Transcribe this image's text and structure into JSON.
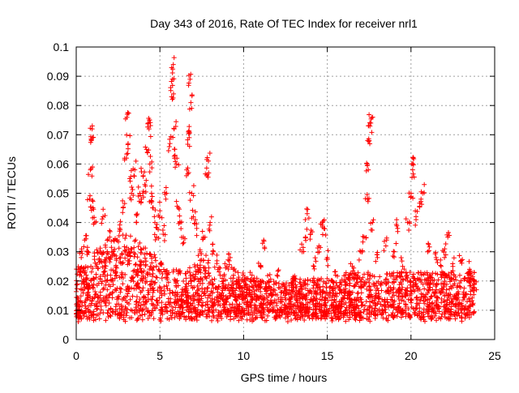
{
  "chart_data": {
    "type": "scatter",
    "title": "Day 343 of 2016, Rate Of TEC Index for receiver nrl1",
    "xlabel": "GPS time / hours",
    "ylabel": "ROTI / TECUs",
    "xlim": [
      0,
      25
    ],
    "ylim": [
      0,
      0.1
    ],
    "xticks": [
      0,
      5,
      10,
      15,
      20,
      25
    ],
    "xtick_labels": [
      "0",
      "5",
      "10",
      "15",
      "20",
      "25"
    ],
    "yticks": [
      0,
      0.01,
      0.02,
      0.03,
      0.04,
      0.05,
      0.06,
      0.07,
      0.08,
      0.09,
      0.1
    ],
    "ytick_labels": [
      "0",
      "0.01",
      "0.02",
      "0.03",
      "0.04",
      "0.05",
      "0.06",
      "0.07",
      "0.08",
      "0.09",
      "0.1"
    ],
    "grid": true,
    "marker": "+",
    "color": "#ff0000",
    "data_x_range_hours": [
      0,
      23.8
    ],
    "series": [
      {
        "name": "nrl1",
        "points": [
          [
            0.1,
            0.012
          ],
          [
            0.2,
            0.022
          ],
          [
            0.3,
            0.028
          ],
          [
            0.4,
            0.02
          ],
          [
            0.5,
            0.034
          ],
          [
            0.6,
            0.018
          ],
          [
            0.7,
            0.03
          ],
          [
            0.8,
            0.048
          ],
          [
            0.85,
            0.058
          ],
          [
            0.9,
            0.068
          ],
          [
            0.95,
            0.072
          ],
          [
            1.0,
            0.045
          ],
          [
            1.1,
            0.04
          ],
          [
            1.2,
            0.025
          ],
          [
            1.4,
            0.03
          ],
          [
            1.6,
            0.042
          ],
          [
            1.8,
            0.028
          ],
          [
            2.0,
            0.035
          ],
          [
            2.2,
            0.03
          ],
          [
            2.4,
            0.022
          ],
          [
            2.6,
            0.038
          ],
          [
            2.8,
            0.045
          ],
          [
            3.0,
            0.062
          ],
          [
            3.05,
            0.077
          ],
          [
            3.1,
            0.067
          ],
          [
            3.2,
            0.055
          ],
          [
            3.3,
            0.05
          ],
          [
            3.5,
            0.058
          ],
          [
            3.6,
            0.04
          ],
          [
            3.8,
            0.05
          ],
          [
            3.9,
            0.048
          ],
          [
            4.0,
            0.056
          ],
          [
            4.1,
            0.053
          ],
          [
            4.2,
            0.065
          ],
          [
            4.3,
            0.074
          ],
          [
            4.35,
            0.072
          ],
          [
            4.4,
            0.06
          ],
          [
            4.5,
            0.05
          ],
          [
            4.6,
            0.045
          ],
          [
            4.7,
            0.04
          ],
          [
            4.8,
            0.035
          ],
          [
            5.0,
            0.044
          ],
          [
            5.2,
            0.036
          ],
          [
            5.4,
            0.05
          ],
          [
            5.6,
            0.067
          ],
          [
            5.7,
            0.083
          ],
          [
            5.75,
            0.089
          ],
          [
            5.8,
            0.094
          ],
          [
            5.85,
            0.072
          ],
          [
            5.9,
            0.063
          ],
          [
            6.0,
            0.06
          ],
          [
            6.1,
            0.045
          ],
          [
            6.2,
            0.04
          ],
          [
            6.4,
            0.035
          ],
          [
            6.6,
            0.058
          ],
          [
            6.7,
            0.071
          ],
          [
            6.75,
            0.069
          ],
          [
            6.8,
            0.089
          ],
          [
            6.85,
            0.081
          ],
          [
            6.9,
            0.05
          ],
          [
            7.0,
            0.042
          ],
          [
            7.2,
            0.038
          ],
          [
            7.4,
            0.03
          ],
          [
            7.6,
            0.035
          ],
          [
            7.8,
            0.056
          ],
          [
            7.9,
            0.061
          ],
          [
            8.0,
            0.04
          ],
          [
            8.2,
            0.03
          ],
          [
            8.4,
            0.026
          ],
          [
            8.6,
            0.022
          ],
          [
            8.8,
            0.02
          ],
          [
            9.0,
            0.025
          ],
          [
            9.2,
            0.028
          ],
          [
            9.4,
            0.022
          ],
          [
            9.6,
            0.02
          ],
          [
            9.8,
            0.018
          ],
          [
            10.0,
            0.02
          ],
          [
            10.5,
            0.022
          ],
          [
            11.0,
            0.025
          ],
          [
            11.2,
            0.034
          ],
          [
            11.5,
            0.02
          ],
          [
            12.0,
            0.022
          ],
          [
            12.5,
            0.018
          ],
          [
            13.0,
            0.02
          ],
          [
            13.5,
            0.03
          ],
          [
            13.7,
            0.035
          ],
          [
            13.8,
            0.043
          ],
          [
            14.0,
            0.036
          ],
          [
            14.2,
            0.025
          ],
          [
            14.5,
            0.032
          ],
          [
            14.7,
            0.04
          ],
          [
            14.8,
            0.038
          ],
          [
            15.0,
            0.028
          ],
          [
            15.5,
            0.022
          ],
          [
            16.0,
            0.02
          ],
          [
            16.5,
            0.025
          ],
          [
            17.0,
            0.03
          ],
          [
            17.2,
            0.035
          ],
          [
            17.4,
            0.048
          ],
          [
            17.45,
            0.058
          ],
          [
            17.5,
            0.068
          ],
          [
            17.55,
            0.073
          ],
          [
            17.6,
            0.074
          ],
          [
            17.7,
            0.04
          ],
          [
            18.0,
            0.028
          ],
          [
            18.5,
            0.032
          ],
          [
            19.0,
            0.03
          ],
          [
            19.2,
            0.038
          ],
          [
            19.5,
            0.025
          ],
          [
            19.8,
            0.04
          ],
          [
            20.0,
            0.05
          ],
          [
            20.05,
            0.06
          ],
          [
            20.1,
            0.058
          ],
          [
            20.3,
            0.042
          ],
          [
            20.6,
            0.048
          ],
          [
            20.7,
            0.05
          ],
          [
            21.0,
            0.03
          ],
          [
            21.5,
            0.028
          ],
          [
            21.8,
            0.025
          ],
          [
            22.0,
            0.028
          ],
          [
            22.2,
            0.035
          ],
          [
            22.5,
            0.025
          ],
          [
            23.0,
            0.027
          ],
          [
            23.5,
            0.024
          ],
          [
            23.8,
            0.02
          ]
        ]
      }
    ]
  }
}
